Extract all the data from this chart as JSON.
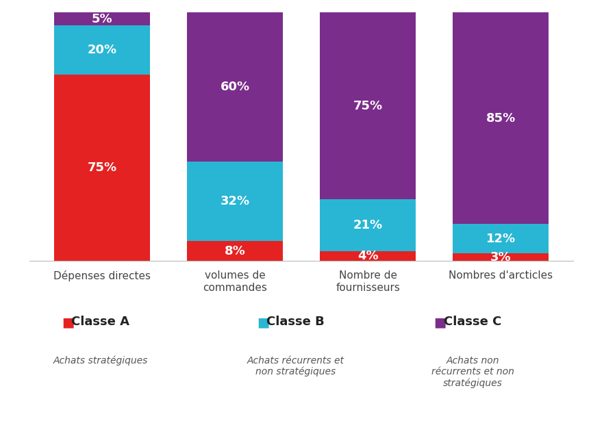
{
  "categories": [
    "Dépenses directes",
    "volumes de\ncommandes",
    "Nombre de\nfournisseurs",
    "Nombres d'arcticles"
  ],
  "classe_a": [
    75,
    8,
    4,
    3
  ],
  "classe_b": [
    20,
    32,
    21,
    12
  ],
  "classe_c": [
    5,
    60,
    75,
    85
  ],
  "color_a": "#e52222",
  "color_b": "#29b6d4",
  "color_c": "#7b2d8b",
  "label_a": "Classe A",
  "label_b": "Classe B",
  "label_c": "Classe C",
  "subtitle_a": "Achats stratégiques",
  "subtitle_b": "Achats récurrents et\nnon stratégiques",
  "subtitle_c": "Achats non\nrécurrents et non\nstratégiques",
  "background_color": "#ffffff",
  "bar_width": 0.72,
  "ylim": [
    0,
    100
  ],
  "label_color": "#ffffff",
  "label_fontsize": 13,
  "tick_fontsize": 11,
  "legend_label_fontsize": 13,
  "legend_subtitle_fontsize": 10
}
